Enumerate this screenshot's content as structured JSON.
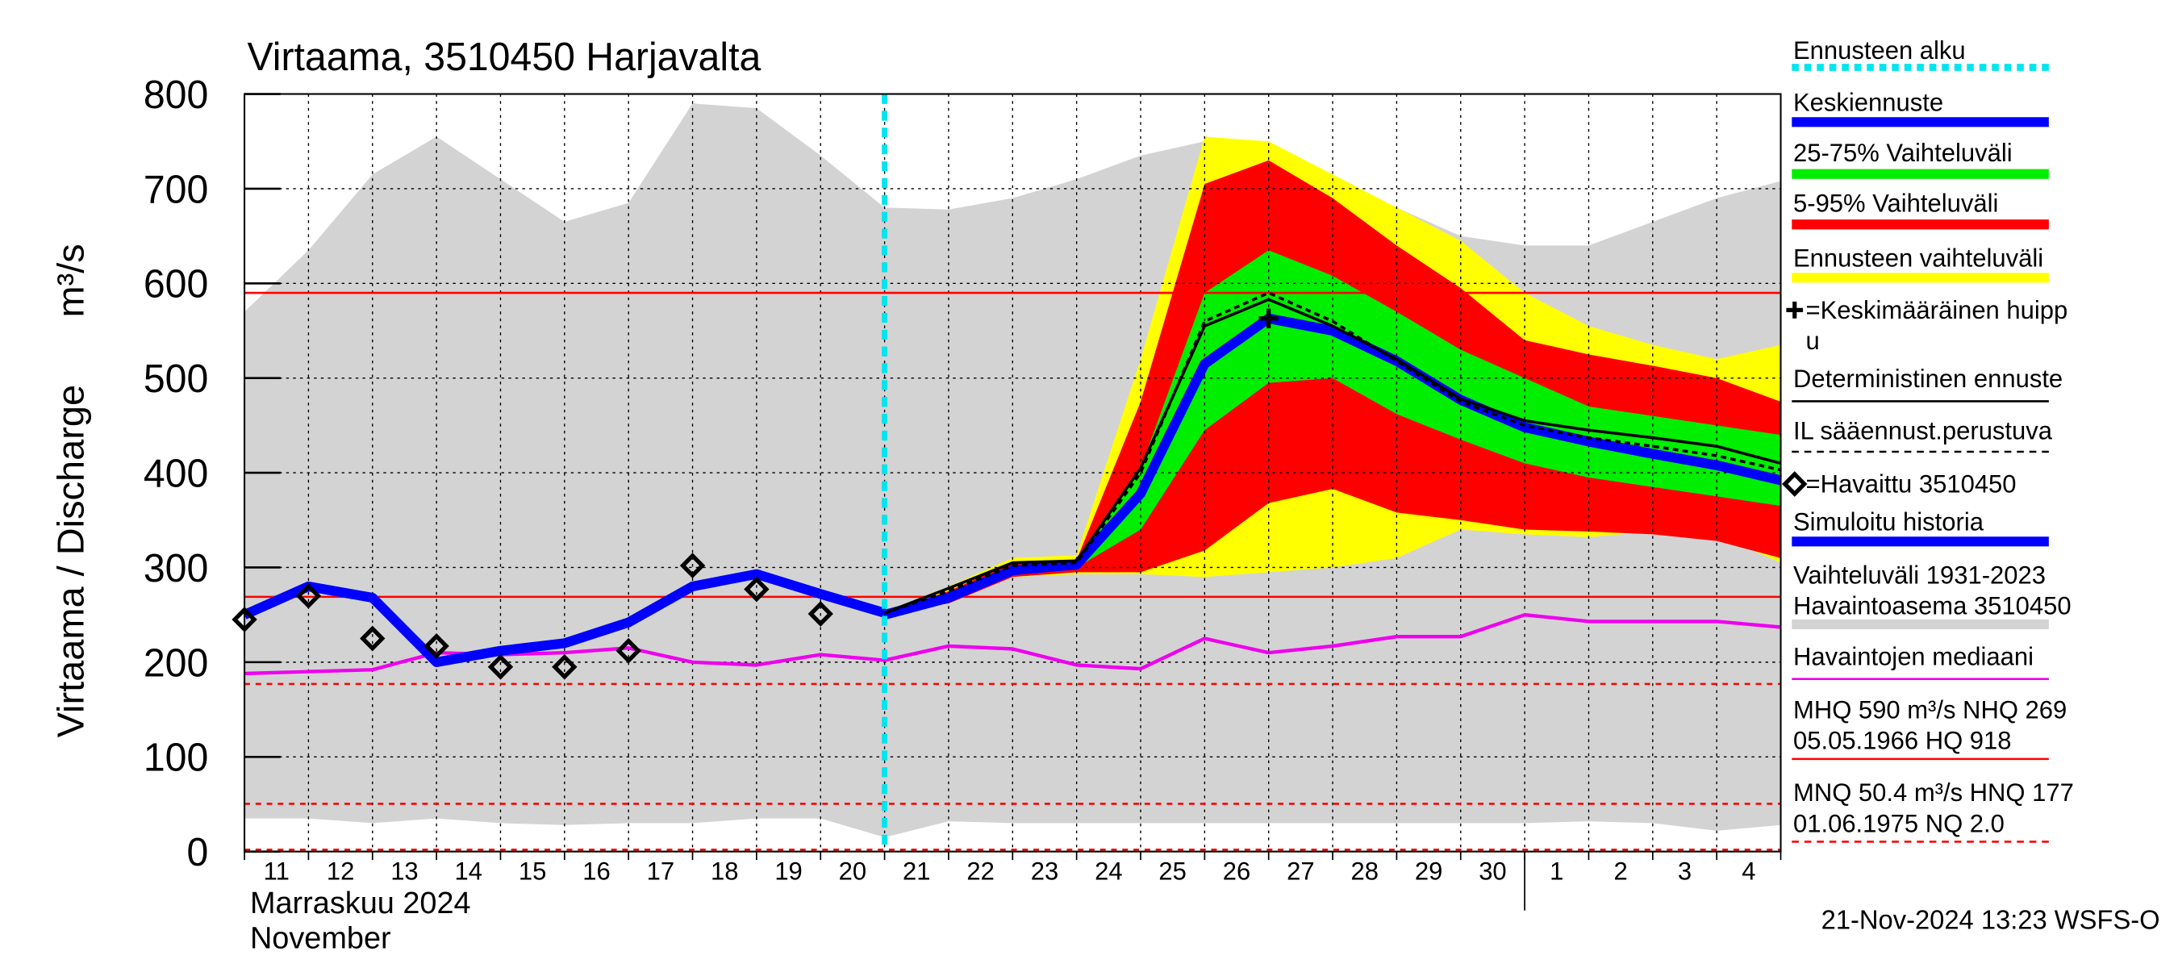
{
  "chart_data": {
    "type": "hydrograph",
    "title": "Virtaama, 3510450 Harjavalta",
    "y_label": "Virtaama / Discharge",
    "y_unit": "m³/s",
    "month_label": "Marraskuu 2024",
    "month_label_en": "November",
    "timestamp": "21-Nov-2024 13:23 WSFS-O",
    "ylim": [
      0,
      800
    ],
    "yticks": [
      0,
      100,
      200,
      300,
      400,
      500,
      600,
      700,
      800
    ],
    "xlim": [
      0,
      24
    ],
    "x": [
      0,
      1,
      2,
      3,
      4,
      5,
      6,
      7,
      8,
      9,
      10,
      11,
      12,
      13,
      14,
      15,
      16,
      17,
      18,
      19,
      20,
      21,
      22,
      23,
      24
    ],
    "x_labels": [
      "11",
      "12",
      "13",
      "14",
      "15",
      "16",
      "17",
      "18",
      "19",
      "20",
      "21",
      "22",
      "23",
      "24",
      "25",
      "26",
      "27",
      "28",
      "29",
      "30",
      "1",
      "2",
      "3",
      "4"
    ],
    "month_boundary": 20,
    "grid": true,
    "forecast_start": {
      "x": 10,
      "color": "#00e5ee"
    },
    "bands": [
      {
        "color": "#d3d3d3",
        "upper": [
          570,
          635,
          715,
          755,
          710,
          665,
          685,
          790,
          785,
          735,
          680,
          678,
          690,
          710,
          735,
          750,
          745,
          715,
          680,
          650,
          640,
          640,
          665,
          690,
          708
        ],
        "lower": [
          35,
          35,
          30,
          35,
          30,
          28,
          30,
          30,
          35,
          35,
          15,
          32,
          30,
          30,
          30,
          30,
          30,
          30,
          30,
          30,
          30,
          32,
          30,
          22,
          28
        ]
      },
      {
        "color": "#ffff00",
        "upper": [
          null,
          null,
          null,
          null,
          null,
          null,
          null,
          null,
          null,
          null,
          252,
          280,
          310,
          313,
          520,
          755,
          750,
          715,
          680,
          645,
          590,
          555,
          535,
          520,
          535
        ],
        "lower": [
          null,
          null,
          null,
          null,
          null,
          null,
          null,
          null,
          null,
          null,
          252,
          262,
          290,
          293,
          293,
          290,
          295,
          300,
          310,
          340,
          335,
          332,
          338,
          335,
          305
        ]
      },
      {
        "color": "#ff0000",
        "upper": [
          null,
          null,
          null,
          null,
          null,
          null,
          null,
          null,
          null,
          null,
          252,
          275,
          305,
          308,
          475,
          705,
          730,
          690,
          640,
          595,
          540,
          525,
          513,
          500,
          475
        ],
        "lower": [
          null,
          null,
          null,
          null,
          null,
          null,
          null,
          null,
          null,
          null,
          252,
          262,
          290,
          295,
          295,
          318,
          368,
          383,
          358,
          350,
          340,
          338,
          335,
          328,
          310
        ]
      },
      {
        "color": "#00ee00",
        "upper": [
          null,
          null,
          null,
          null,
          null,
          null,
          null,
          null,
          null,
          null,
          252,
          270,
          298,
          305,
          405,
          590,
          635,
          608,
          570,
          530,
          500,
          470,
          460,
          450,
          440
        ],
        "lower": [
          null,
          null,
          null,
          null,
          null,
          null,
          null,
          null,
          null,
          null,
          252,
          265,
          295,
          300,
          340,
          445,
          495,
          500,
          462,
          435,
          410,
          395,
          385,
          375,
          365
        ]
      }
    ],
    "reference_lines": [
      {
        "value": 590,
        "dashed": false
      },
      {
        "value": 269,
        "dashed": false
      },
      {
        "value": 177,
        "dashed": true
      },
      {
        "value": 50.4,
        "dashed": true
      },
      {
        "value": 2.0,
        "dashed": true
      }
    ],
    "reference_color": "#ff0000",
    "lines": [
      {
        "color": "#ee00ee",
        "width": 2.5,
        "dashed": false,
        "values": [
          188,
          190,
          192,
          210,
          208,
          210,
          215,
          200,
          197,
          208,
          202,
          217,
          214,
          197,
          193,
          225,
          210,
          217,
          227,
          227,
          250,
          243,
          243,
          243,
          237
        ]
      },
      {
        "color": "#0000ff",
        "width": 7,
        "dashed": false,
        "values": [
          250,
          280,
          268,
          200,
          212,
          220,
          242,
          280,
          293,
          272,
          252,
          null,
          null,
          null,
          null,
          null,
          null,
          null,
          null,
          null,
          null,
          null,
          null,
          null,
          null
        ]
      },
      {
        "color": "#0000ff",
        "width": 7,
        "dashed": false,
        "values": [
          null,
          null,
          null,
          null,
          null,
          null,
          null,
          null,
          null,
          null,
          250,
          268,
          297,
          303,
          378,
          515,
          563,
          550,
          518,
          477,
          448,
          433,
          420,
          408,
          392
        ]
      },
      {
        "color": "#000000",
        "width": 2,
        "dashed": false,
        "values": [
          null,
          null,
          null,
          null,
          null,
          null,
          null,
          null,
          null,
          null,
          252,
          278,
          305,
          307,
          405,
          555,
          583,
          555,
          520,
          478,
          455,
          445,
          437,
          428,
          410
        ]
      },
      {
        "color": "#000000",
        "width": 2,
        "dashed": true,
        "values": [
          null,
          null,
          null,
          null,
          null,
          null,
          null,
          null,
          null,
          null,
          252,
          275,
          302,
          305,
          400,
          560,
          590,
          560,
          518,
          475,
          450,
          437,
          428,
          418,
          403
        ]
      }
    ],
    "observed": [
      245,
      270,
      225,
      217,
      195,
      195,
      212,
      302,
      277,
      251,
      null,
      null,
      null,
      null,
      null,
      null,
      null,
      null,
      null,
      null,
      null,
      null,
      null,
      null,
      null
    ],
    "mean_peak": {
      "x": 16,
      "value": 563
    },
    "legend": [
      {
        "lines": [
          "Ennusteen alku"
        ],
        "style": "dash",
        "color": "#00e5ee"
      },
      {
        "lines": [
          "Keskiennuste"
        ],
        "style": "thick",
        "color": "#0000ff"
      },
      {
        "lines": [
          "25-75% Vaihteluväli"
        ],
        "style": "thick",
        "color": "#00ee00"
      },
      {
        "lines": [
          "5-95% Vaihteluväli"
        ],
        "style": "thick",
        "color": "#ff0000"
      },
      {
        "lines": [
          "Ennusteen vaihteluväli"
        ],
        "style": "thick",
        "color": "#ffff00"
      },
      {
        "lines": [
          "=Keskimääräinen huipp",
          "u"
        ],
        "style": "cross",
        "color": "#000000"
      },
      {
        "lines": [
          "Deterministinen ennuste"
        ],
        "style": "thin",
        "color": "#000000"
      },
      {
        "lines": [
          "IL sääennust.perustuva"
        ],
        "style": "dash",
        "color": "#000000"
      },
      {
        "lines": [
          "=Havaittu 3510450"
        ],
        "style": "diamond",
        "color": "#000000"
      },
      {
        "lines": [
          "Simuloitu historia"
        ],
        "style": "thick",
        "color": "#0000ff"
      },
      {
        "lines": [
          "Vaihteluväli 1931-2023",
          " Havaintoasema 3510450"
        ],
        "style": "thick",
        "color": "#d3d3d3"
      },
      {
        "lines": [
          "Havaintojen mediaani"
        ],
        "style": "thin",
        "color": "#ee00ee"
      },
      {
        "lines": [
          "MHQ  590 m³/s NHQ  269",
          "05.05.1966 HQ  918"
        ],
        "style": "thin",
        "color": "#ff0000"
      },
      {
        "lines": [
          "MNQ 50.4 m³/s HNQ  177",
          "01.06.1975 NQ  2.0"
        ],
        "style": "dash",
        "color": "#ff0000"
      }
    ]
  }
}
